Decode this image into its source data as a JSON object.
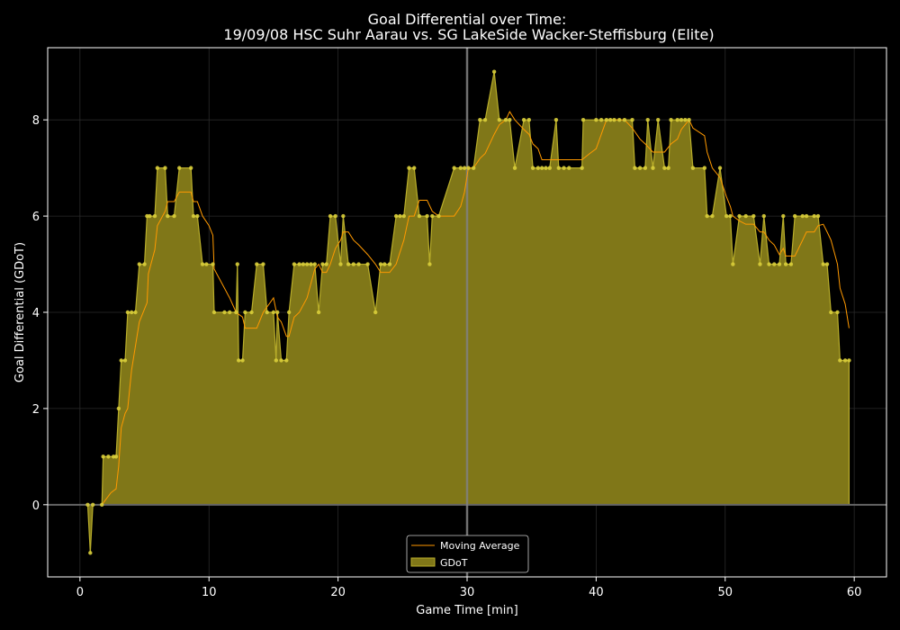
{
  "chart_data": {
    "type": "area",
    "title": "Goal Differential over Time:",
    "subtitle": "19/09/08 HSC Suhr Aarau  vs.  SG LakeSide Wacker-Steffisburg (Elite)",
    "xlabel": "Game Time [min]",
    "ylabel": "Goal Differential (GDoT)",
    "xlim": [
      -2.5,
      62.5
    ],
    "ylim": [
      -1.5,
      9.5
    ],
    "xticks": [
      0,
      10,
      20,
      30,
      40,
      50,
      60
    ],
    "yticks": [
      0,
      2,
      4,
      6,
      8
    ],
    "grid": true,
    "legend_position": "bottom-center",
    "halftime_line_x": 30,
    "colors": {
      "background": "#000000",
      "fill": "#807718",
      "edge": "#b8ad2a",
      "points": "#d8cd3a",
      "moving_average": "#ff9900",
      "grid": "#2a2a2a",
      "axes": "#ffffff",
      "reference_line": "#666666",
      "halftime_line": "#808080"
    },
    "series": [
      {
        "name": "GDoT",
        "style": "area-step-markers",
        "points": [
          [
            0.6,
            0
          ],
          [
            0.8,
            -1
          ],
          [
            1.0,
            0
          ],
          [
            1.7,
            0
          ],
          [
            1.8,
            1
          ],
          [
            2.2,
            1
          ],
          [
            2.6,
            1
          ],
          [
            2.8,
            1
          ],
          [
            3.0,
            2
          ],
          [
            3.2,
            3
          ],
          [
            3.5,
            3
          ],
          [
            3.7,
            4
          ],
          [
            4.0,
            4
          ],
          [
            4.3,
            4
          ],
          [
            4.6,
            5
          ],
          [
            5.0,
            5
          ],
          [
            5.2,
            6
          ],
          [
            5.4,
            6
          ],
          [
            5.8,
            6
          ],
          [
            6.0,
            7
          ],
          [
            6.6,
            7
          ],
          [
            6.8,
            6
          ],
          [
            7.3,
            6
          ],
          [
            7.7,
            7
          ],
          [
            8.6,
            7
          ],
          [
            8.8,
            6
          ],
          [
            9.1,
            6
          ],
          [
            9.5,
            5
          ],
          [
            9.8,
            5
          ],
          [
            10.3,
            5
          ],
          [
            10.4,
            4
          ],
          [
            11.2,
            4
          ],
          [
            11.6,
            4
          ],
          [
            12.1,
            4
          ],
          [
            12.2,
            5
          ],
          [
            12.3,
            3
          ],
          [
            12.6,
            3
          ],
          [
            12.8,
            4
          ],
          [
            13.3,
            4
          ],
          [
            13.7,
            5
          ],
          [
            14.2,
            5
          ],
          [
            14.5,
            4
          ],
          [
            15.0,
            4
          ],
          [
            15.2,
            3
          ],
          [
            15.3,
            4
          ],
          [
            15.6,
            3
          ],
          [
            16.0,
            3
          ],
          [
            16.2,
            4
          ],
          [
            16.6,
            5
          ],
          [
            17.0,
            5
          ],
          [
            17.3,
            5
          ],
          [
            17.6,
            5
          ],
          [
            17.9,
            5
          ],
          [
            18.2,
            5
          ],
          [
            18.5,
            4
          ],
          [
            18.8,
            5
          ],
          [
            19.1,
            5
          ],
          [
            19.4,
            6
          ],
          [
            19.8,
            6
          ],
          [
            20.2,
            5
          ],
          [
            20.4,
            6
          ],
          [
            20.8,
            5
          ],
          [
            21.2,
            5
          ],
          [
            21.6,
            5
          ],
          [
            22.3,
            5
          ],
          [
            22.9,
            4
          ],
          [
            23.3,
            5
          ],
          [
            23.6,
            5
          ],
          [
            24.0,
            5
          ],
          [
            24.5,
            6
          ],
          [
            24.8,
            6
          ],
          [
            25.1,
            6
          ],
          [
            25.5,
            7
          ],
          [
            25.9,
            7
          ],
          [
            26.3,
            6
          ],
          [
            26.9,
            6
          ],
          [
            27.1,
            5
          ],
          [
            27.3,
            6
          ],
          [
            27.8,
            6
          ],
          [
            29.0,
            7
          ],
          [
            29.5,
            7
          ],
          [
            29.8,
            7
          ],
          [
            30.1,
            7
          ],
          [
            30.5,
            7
          ],
          [
            31.0,
            8
          ],
          [
            31.4,
            8
          ],
          [
            32.1,
            9
          ],
          [
            32.5,
            8
          ],
          [
            33.0,
            8
          ],
          [
            33.3,
            8
          ],
          [
            33.7,
            7
          ],
          [
            34.4,
            8
          ],
          [
            34.8,
            8
          ],
          [
            35.1,
            7
          ],
          [
            35.5,
            7
          ],
          [
            35.8,
            7
          ],
          [
            36.1,
            7
          ],
          [
            36.4,
            7
          ],
          [
            36.9,
            8
          ],
          [
            37.1,
            7
          ],
          [
            37.5,
            7
          ],
          [
            37.9,
            7
          ],
          [
            38.9,
            7
          ],
          [
            39.0,
            8
          ],
          [
            40.0,
            8
          ],
          [
            40.4,
            8
          ],
          [
            40.8,
            8
          ],
          [
            41.1,
            8
          ],
          [
            41.4,
            8
          ],
          [
            41.8,
            8
          ],
          [
            42.2,
            8
          ],
          [
            42.8,
            8
          ],
          [
            43.0,
            7
          ],
          [
            43.4,
            7
          ],
          [
            43.8,
            7
          ],
          [
            44.0,
            8
          ],
          [
            44.4,
            7
          ],
          [
            44.8,
            8
          ],
          [
            45.3,
            7
          ],
          [
            45.6,
            7
          ],
          [
            45.8,
            8
          ],
          [
            46.3,
            8
          ],
          [
            46.6,
            8
          ],
          [
            46.9,
            8
          ],
          [
            47.2,
            8
          ],
          [
            47.5,
            7
          ],
          [
            48.4,
            7
          ],
          [
            48.6,
            6
          ],
          [
            49.0,
            6
          ],
          [
            49.6,
            7
          ],
          [
            50.1,
            6
          ],
          [
            50.4,
            6
          ],
          [
            50.6,
            5
          ],
          [
            51.1,
            6
          ],
          [
            51.6,
            6
          ],
          [
            52.2,
            6
          ],
          [
            52.7,
            5
          ],
          [
            53.0,
            6
          ],
          [
            53.4,
            5
          ],
          [
            53.8,
            5
          ],
          [
            54.2,
            5
          ],
          [
            54.5,
            6
          ],
          [
            54.7,
            5
          ],
          [
            55.1,
            5
          ],
          [
            55.4,
            6
          ],
          [
            56.0,
            6
          ],
          [
            56.3,
            6
          ],
          [
            56.9,
            6
          ],
          [
            57.2,
            6
          ],
          [
            57.6,
            5
          ],
          [
            57.9,
            5
          ],
          [
            58.2,
            4
          ],
          [
            58.7,
            4
          ],
          [
            58.9,
            3
          ],
          [
            59.3,
            3
          ],
          [
            59.6,
            3
          ]
        ]
      },
      {
        "name": "Moving Average",
        "style": "line",
        "points": [
          [
            1.7,
            0
          ],
          [
            2.4,
            0.25
          ],
          [
            2.8,
            0.33
          ],
          [
            3.0,
            0.8
          ],
          [
            3.2,
            1.6
          ],
          [
            3.5,
            1.9
          ],
          [
            3.7,
            2.0
          ],
          [
            4.0,
            2.8
          ],
          [
            4.6,
            3.8
          ],
          [
            5.2,
            4.2
          ],
          [
            5.3,
            4.8
          ],
          [
            5.8,
            5.3
          ],
          [
            6.0,
            5.8
          ],
          [
            6.6,
            6.1
          ],
          [
            6.8,
            6.3
          ],
          [
            7.3,
            6.3
          ],
          [
            7.7,
            6.5
          ],
          [
            8.6,
            6.5
          ],
          [
            8.8,
            6.3
          ],
          [
            9.1,
            6.3
          ],
          [
            9.5,
            6.0
          ],
          [
            10.0,
            5.8
          ],
          [
            10.3,
            5.6
          ],
          [
            10.4,
            4.9
          ],
          [
            11.2,
            4.5
          ],
          [
            11.6,
            4.3
          ],
          [
            12.1,
            4.0
          ],
          [
            12.6,
            3.9
          ],
          [
            12.8,
            3.67
          ],
          [
            13.7,
            3.67
          ],
          [
            14.2,
            4.0
          ],
          [
            15.0,
            4.3
          ],
          [
            15.3,
            3.9
          ],
          [
            15.6,
            3.8
          ],
          [
            16.0,
            3.5
          ],
          [
            16.2,
            3.5
          ],
          [
            16.6,
            3.9
          ],
          [
            17.0,
            4.0
          ],
          [
            17.6,
            4.3
          ],
          [
            18.2,
            4.9
          ],
          [
            18.5,
            5.0
          ],
          [
            18.8,
            4.83
          ],
          [
            19.1,
            4.83
          ],
          [
            19.4,
            5.0
          ],
          [
            19.8,
            5.33
          ],
          [
            20.2,
            5.5
          ],
          [
            20.4,
            5.67
          ],
          [
            20.8,
            5.67
          ],
          [
            21.2,
            5.5
          ],
          [
            21.6,
            5.4
          ],
          [
            22.3,
            5.2
          ],
          [
            22.9,
            5.0
          ],
          [
            23.3,
            4.83
          ],
          [
            24.0,
            4.83
          ],
          [
            24.5,
            5.0
          ],
          [
            25.1,
            5.5
          ],
          [
            25.5,
            6.0
          ],
          [
            25.9,
            6.0
          ],
          [
            26.3,
            6.33
          ],
          [
            26.9,
            6.33
          ],
          [
            27.3,
            6.1
          ],
          [
            27.8,
            6.0
          ],
          [
            29.0,
            6.0
          ],
          [
            29.5,
            6.2
          ],
          [
            29.8,
            6.5
          ],
          [
            30.1,
            7.0
          ],
          [
            30.5,
            7.0
          ],
          [
            31.0,
            7.2
          ],
          [
            31.4,
            7.3
          ],
          [
            32.1,
            7.7
          ],
          [
            32.5,
            7.9
          ],
          [
            33.0,
            8.0
          ],
          [
            33.3,
            8.17
          ],
          [
            33.7,
            8.0
          ],
          [
            34.4,
            7.8
          ],
          [
            34.8,
            7.7
          ],
          [
            35.1,
            7.5
          ],
          [
            35.5,
            7.4
          ],
          [
            35.8,
            7.17
          ],
          [
            36.1,
            7.17
          ],
          [
            36.9,
            7.17
          ],
          [
            37.5,
            7.17
          ],
          [
            38.9,
            7.17
          ],
          [
            39.5,
            7.3
          ],
          [
            40.0,
            7.4
          ],
          [
            40.4,
            7.7
          ],
          [
            40.8,
            8.0
          ],
          [
            41.1,
            8.0
          ],
          [
            42.2,
            8.0
          ],
          [
            42.8,
            7.83
          ],
          [
            43.4,
            7.6
          ],
          [
            43.8,
            7.5
          ],
          [
            44.4,
            7.33
          ],
          [
            45.3,
            7.33
          ],
          [
            45.8,
            7.5
          ],
          [
            46.3,
            7.6
          ],
          [
            46.6,
            7.8
          ],
          [
            47.2,
            8.0
          ],
          [
            47.5,
            7.83
          ],
          [
            48.4,
            7.67
          ],
          [
            48.6,
            7.33
          ],
          [
            49.0,
            7.0
          ],
          [
            49.6,
            6.8
          ],
          [
            50.1,
            6.4
          ],
          [
            50.4,
            6.2
          ],
          [
            50.6,
            6.0
          ],
          [
            51.1,
            5.9
          ],
          [
            51.6,
            5.83
          ],
          [
            52.2,
            5.83
          ],
          [
            52.7,
            5.67
          ],
          [
            53.0,
            5.67
          ],
          [
            53.4,
            5.5
          ],
          [
            53.8,
            5.4
          ],
          [
            54.2,
            5.2
          ],
          [
            54.5,
            5.33
          ],
          [
            54.7,
            5.17
          ],
          [
            55.4,
            5.17
          ],
          [
            56.0,
            5.5
          ],
          [
            56.3,
            5.67
          ],
          [
            56.9,
            5.67
          ],
          [
            57.2,
            5.8
          ],
          [
            57.6,
            5.83
          ],
          [
            57.9,
            5.67
          ],
          [
            58.2,
            5.5
          ],
          [
            58.7,
            5.0
          ],
          [
            58.9,
            4.5
          ],
          [
            59.3,
            4.17
          ],
          [
            59.6,
            3.67
          ]
        ]
      }
    ]
  }
}
